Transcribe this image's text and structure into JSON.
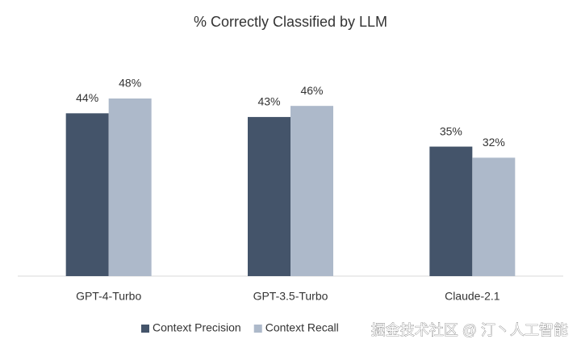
{
  "chart_data": {
    "type": "bar",
    "title": "% Correctly Classified by LLM",
    "categories": [
      "GPT-4-Turbo",
      "GPT-3.5-Turbo",
      "Claude-2.1"
    ],
    "series": [
      {
        "name": "Context Precision",
        "color": "#44546a",
        "values": [
          44,
          43,
          35
        ],
        "value_labels": [
          "44%",
          "43%",
          "35%"
        ]
      },
      {
        "name": "Context Recall",
        "color": "#adb9ca",
        "values": [
          48,
          46,
          32
        ],
        "value_labels": [
          "48%",
          "46%",
          "32%"
        ]
      }
    ],
    "ylim": [
      0,
      60
    ],
    "legend": "bottom",
    "watermark": "掘金技术社区 @ 汀丶人工智能"
  }
}
